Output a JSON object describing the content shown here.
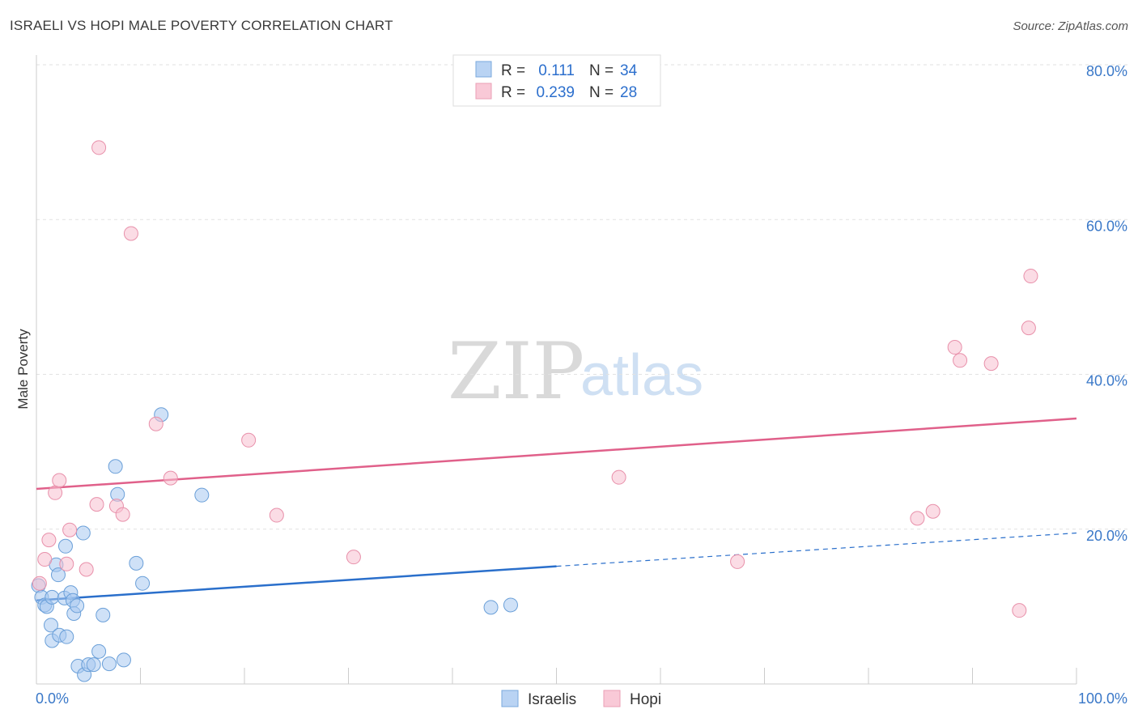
{
  "header": {
    "title": "ISRAELI VS HOPI MALE POVERTY CORRELATION CHART",
    "source": "Source: ZipAtlas.com"
  },
  "legend": {
    "r_label": "R =",
    "n_label": "N =",
    "israelis": {
      "r": "0.111",
      "n": "34"
    },
    "hopi": {
      "r": "0.239",
      "n": "28"
    }
  },
  "watermark": {
    "zip": "ZIP",
    "atlas": "atlas"
  },
  "chart_data": {
    "type": "scatter",
    "title": "ISRAELI VS HOPI MALE POVERTY CORRELATION CHART",
    "xlabel": "",
    "ylabel": "Male Poverty",
    "xlim": [
      0,
      100
    ],
    "ylim": [
      0,
      80
    ],
    "x_tick_labels": [
      "0.0%",
      "100.0%"
    ],
    "y_ticks": [
      20,
      40,
      60,
      80
    ],
    "y_tick_labels": [
      "20.0%",
      "40.0%",
      "60.0%",
      "80.0%"
    ],
    "grid": true,
    "legend_position": "top-center",
    "series": [
      {
        "name": "Israelis",
        "color": "#a8c8f0",
        "stroke": "#6a9fd8",
        "line_color": "#2a6fcb",
        "points": [
          [
            0.2,
            12.7
          ],
          [
            0.5,
            11.2
          ],
          [
            0.8,
            10.2
          ],
          [
            1.0,
            10.0
          ],
          [
            1.5,
            11.2
          ],
          [
            1.4,
            7.6
          ],
          [
            1.5,
            5.6
          ],
          [
            1.9,
            15.4
          ],
          [
            2.1,
            14.1
          ],
          [
            2.2,
            6.3
          ],
          [
            2.7,
            11.1
          ],
          [
            2.8,
            17.8
          ],
          [
            2.9,
            6.1
          ],
          [
            3.3,
            11.8
          ],
          [
            3.5,
            10.8
          ],
          [
            3.6,
            9.1
          ],
          [
            3.9,
            10.1
          ],
          [
            4.0,
            2.3
          ],
          [
            4.5,
            19.5
          ],
          [
            4.6,
            1.2
          ],
          [
            5.0,
            2.5
          ],
          [
            5.5,
            2.5
          ],
          [
            6.0,
            4.2
          ],
          [
            6.4,
            8.9
          ],
          [
            7.0,
            2.6
          ],
          [
            7.6,
            28.1
          ],
          [
            7.8,
            24.5
          ],
          [
            8.4,
            3.1
          ],
          [
            9.6,
            15.6
          ],
          [
            10.2,
            13.0
          ],
          [
            12.0,
            34.8
          ],
          [
            15.9,
            24.4
          ],
          [
            43.7,
            9.9
          ],
          [
            45.6,
            10.2
          ]
        ],
        "trend": {
          "start": [
            0,
            10.8
          ],
          "solid_end": [
            50,
            15.2
          ],
          "end": [
            100,
            19.5
          ]
        }
      },
      {
        "name": "Hopi",
        "color": "#f8c0d0",
        "stroke": "#e890aa",
        "line_color": "#e0608a",
        "points": [
          [
            0.3,
            13.0
          ],
          [
            0.8,
            16.1
          ],
          [
            1.2,
            18.6
          ],
          [
            1.8,
            24.7
          ],
          [
            2.2,
            26.3
          ],
          [
            2.9,
            15.5
          ],
          [
            3.2,
            19.9
          ],
          [
            4.8,
            14.8
          ],
          [
            5.8,
            23.2
          ],
          [
            6.0,
            69.3
          ],
          [
            7.7,
            23.0
          ],
          [
            8.3,
            21.9
          ],
          [
            9.1,
            58.2
          ],
          [
            11.5,
            33.6
          ],
          [
            12.9,
            26.6
          ],
          [
            20.4,
            31.5
          ],
          [
            23.1,
            21.8
          ],
          [
            30.5,
            16.4
          ],
          [
            56.0,
            26.7
          ],
          [
            67.4,
            15.8
          ],
          [
            84.7,
            21.4
          ],
          [
            86.2,
            22.3
          ],
          [
            88.3,
            43.5
          ],
          [
            88.8,
            41.8
          ],
          [
            91.8,
            41.4
          ],
          [
            94.5,
            9.5
          ],
          [
            95.4,
            46.0
          ],
          [
            95.6,
            52.7
          ]
        ],
        "trend": {
          "start": [
            0,
            25.2
          ],
          "end": [
            100,
            34.3
          ]
        }
      }
    ]
  }
}
